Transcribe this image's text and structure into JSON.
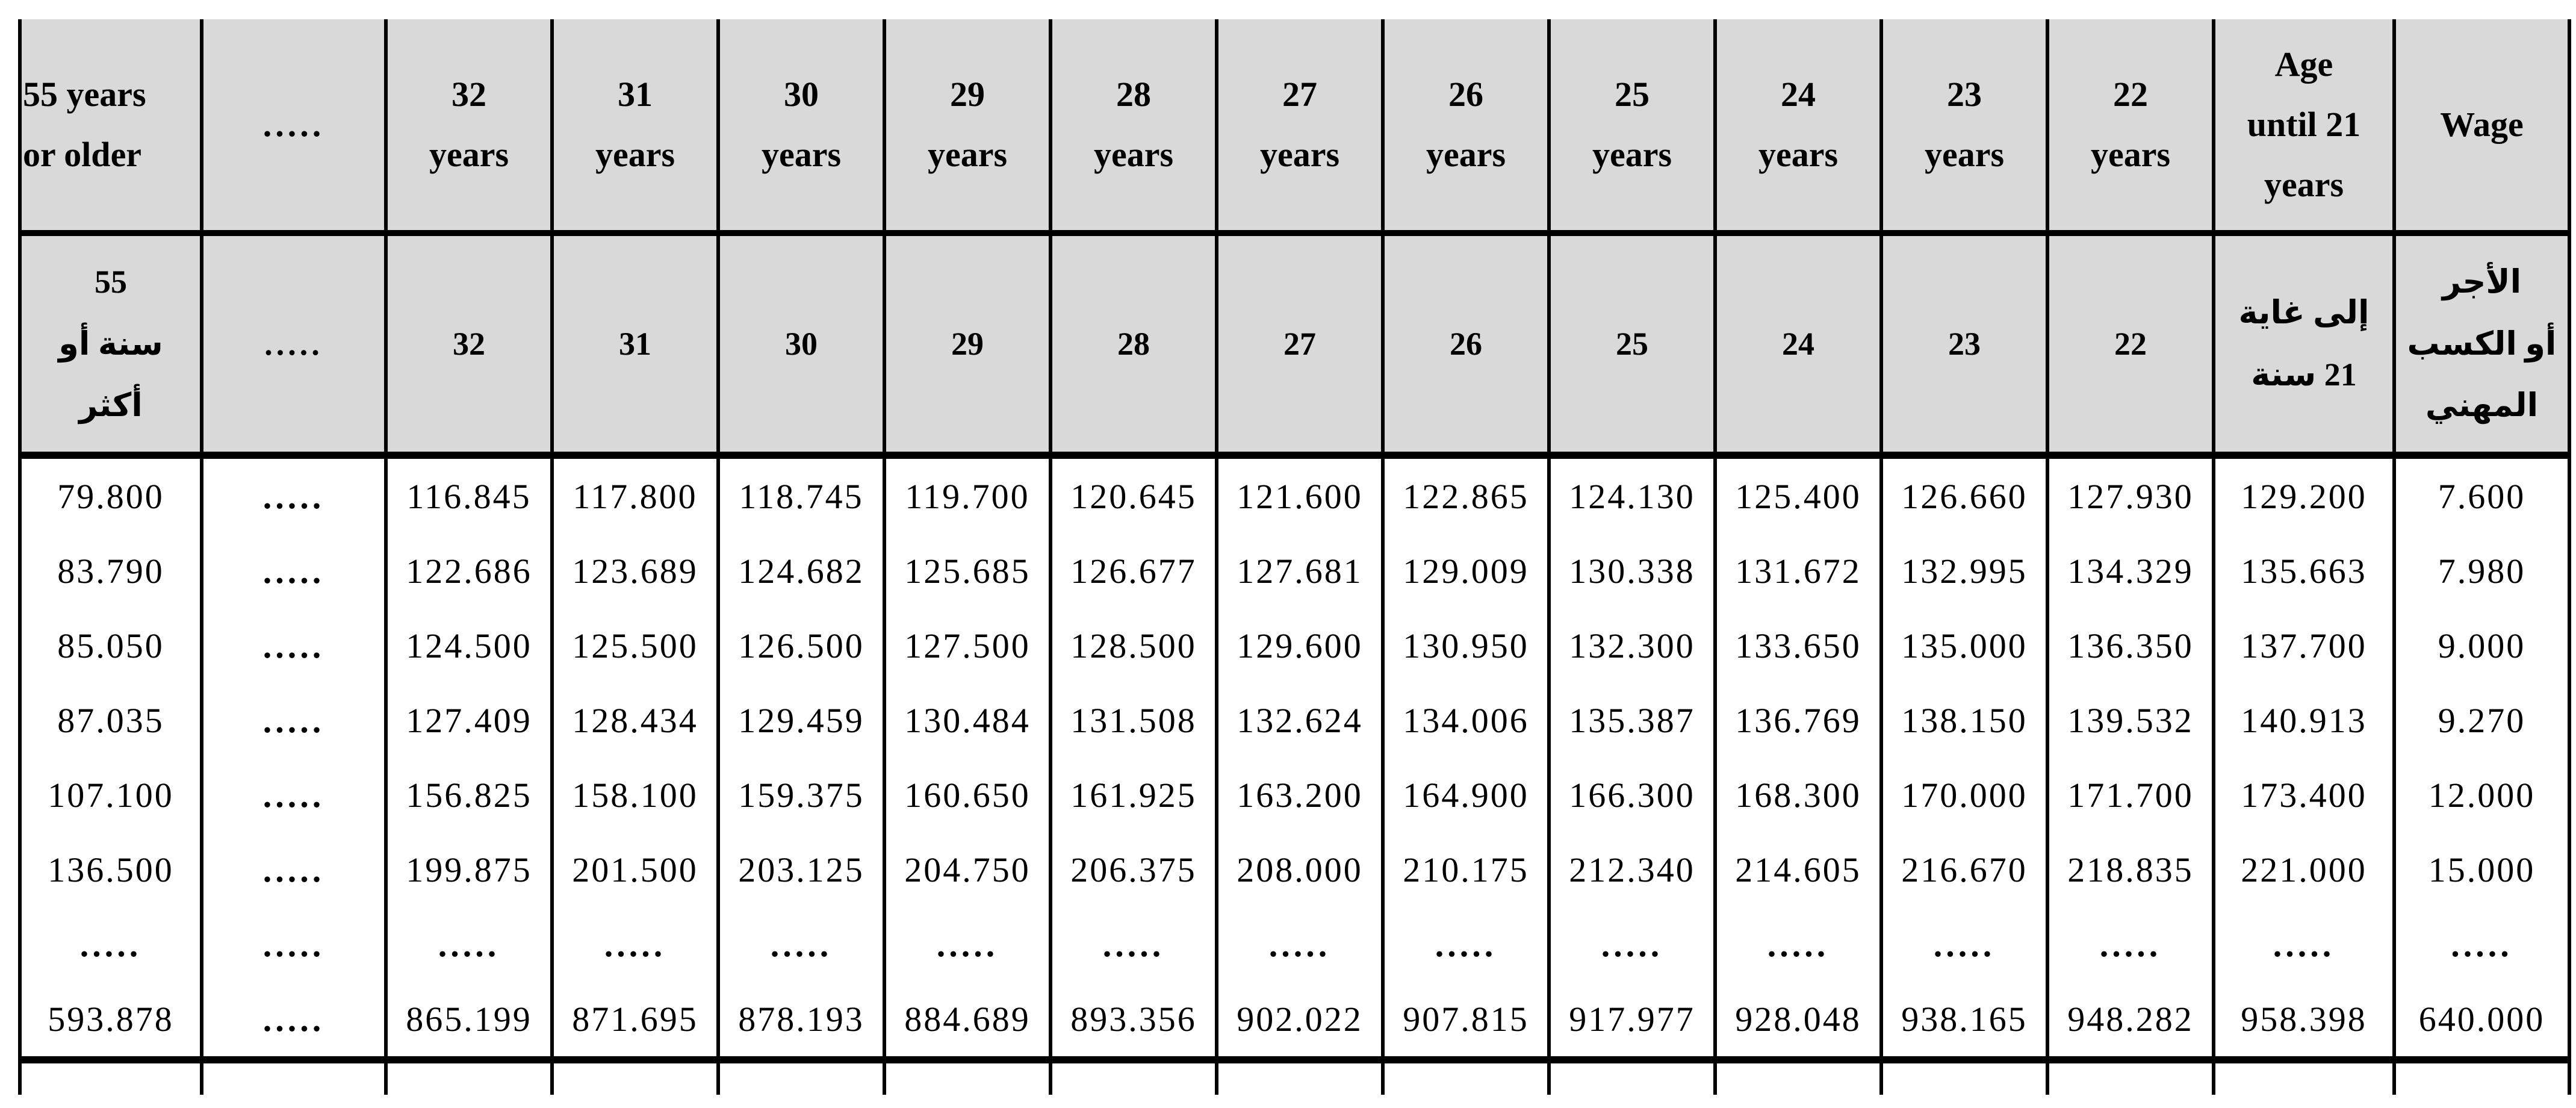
{
  "colors": {
    "header_bg": "#d9d9d9",
    "border": "#000000",
    "text": "#000000",
    "page_bg": "#ffffff"
  },
  "table": {
    "columns": [
      {
        "key": "age-55-plus",
        "en": "55 years\nor older",
        "ar": "55\nسنة أو\nأكثر"
      },
      {
        "key": "ellipsis",
        "en": ".....",
        "ar": "....."
      },
      {
        "key": "age-32",
        "en": "32\nyears",
        "ar": "32"
      },
      {
        "key": "age-31",
        "en": "31\nyears",
        "ar": "31"
      },
      {
        "key": "age-30",
        "en": "30\nyears",
        "ar": "30"
      },
      {
        "key": "age-29",
        "en": "29\nyears",
        "ar": "29"
      },
      {
        "key": "age-28",
        "en": "28\nyears",
        "ar": "28"
      },
      {
        "key": "age-27",
        "en": "27\nyears",
        "ar": "27"
      },
      {
        "key": "age-26",
        "en": "26\nyears",
        "ar": "26"
      },
      {
        "key": "age-25",
        "en": "25\nyears",
        "ar": "25"
      },
      {
        "key": "age-24",
        "en": "24\nyears",
        "ar": "24"
      },
      {
        "key": "age-23",
        "en": "23\nyears",
        "ar": "23"
      },
      {
        "key": "age-22",
        "en": "22\nyears",
        "ar": "22"
      },
      {
        "key": "age-until-21",
        "en": "Age\nuntil 21\nyears",
        "ar": "إلى غاية\n21 سنة"
      },
      {
        "key": "wage",
        "en": "Wage",
        "ar": "الأجر\nأو الكسب\nالمهني"
      }
    ],
    "rows": [
      [
        "79.800",
        ".....",
        "116.845",
        "117.800",
        "118.745",
        "119.700",
        "120.645",
        "121.600",
        "122.865",
        "124.130",
        "125.400",
        "126.660",
        "127.930",
        "129.200",
        "7.600"
      ],
      [
        "83.790",
        ".....",
        "122.686",
        "123.689",
        "124.682",
        "125.685",
        "126.677",
        "127.681",
        "129.009",
        "130.338",
        "131.672",
        "132.995",
        "134.329",
        "135.663",
        "7.980"
      ],
      [
        "85.050",
        ".....",
        "124.500",
        "125.500",
        "126.500",
        "127.500",
        "128.500",
        "129.600",
        "130.950",
        "132.300",
        "133.650",
        "135.000",
        "136.350",
        "137.700",
        "9.000"
      ],
      [
        "87.035",
        ".....",
        "127.409",
        "128.434",
        "129.459",
        "130.484",
        "131.508",
        "132.624",
        "134.006",
        "135.387",
        "136.769",
        "138.150",
        "139.532",
        "140.913",
        "9.270"
      ],
      [
        "107.100",
        ".....",
        "156.825",
        "158.100",
        "159.375",
        "160.650",
        "161.925",
        "163.200",
        "164.900",
        "166.300",
        "168.300",
        "170.000",
        "171.700",
        "173.400",
        "12.000"
      ],
      [
        "136.500",
        ".....",
        "199.875",
        "201.500",
        "203.125",
        "204.750",
        "206.375",
        "208.000",
        "210.175",
        "212.340",
        "214.605",
        "216.670",
        "218.835",
        "221.000",
        "15.000"
      ],
      [
        ".....",
        ".....",
        ".....",
        ".....",
        ".....",
        ".....",
        ".....",
        ".....",
        ".....",
        ".....",
        ".....",
        ".....",
        ".....",
        ".....",
        "....."
      ],
      [
        "593.878",
        ".....",
        "865.199",
        "871.695",
        "878.193",
        "884.689",
        "893.356",
        "902.022",
        "907.815",
        "917.977",
        "928.048",
        "938.165",
        "948.282",
        "958.398",
        "640.000"
      ]
    ],
    "footer_empty_row": [
      "",
      "",
      "",
      "",
      "",
      "",
      "",
      "",
      "",
      "",
      "",
      "",
      "",
      "",
      ""
    ]
  }
}
